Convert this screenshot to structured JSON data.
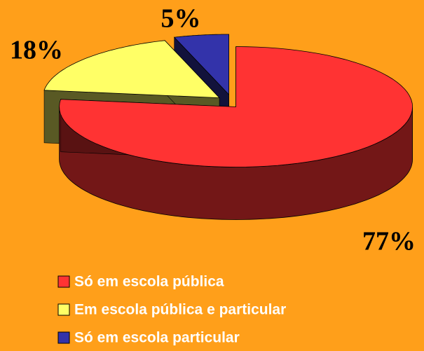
{
  "chart_data": {
    "type": "pie",
    "categories": [
      "Só em escola pública",
      "Em escola pública e particular",
      "Só em escola particular"
    ],
    "values": [
      77,
      18,
      5
    ],
    "value_labels": [
      "77%",
      "18%",
      "5%"
    ],
    "colors": [
      "#ff3333",
      "#ffff66",
      "#3333aa"
    ],
    "legend": "bottom"
  }
}
